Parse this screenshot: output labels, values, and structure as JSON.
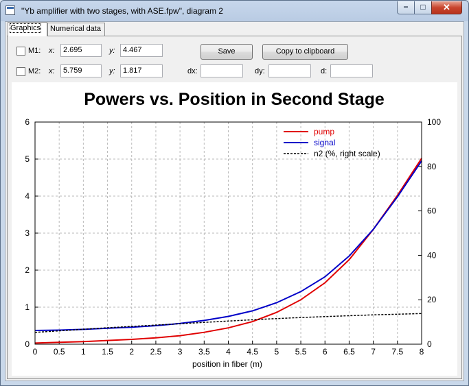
{
  "window": {
    "title": "\"Yb amplifier with two stages, with ASE.fpw\", diagram 2",
    "minimize_glyph": "−",
    "maximize_glyph": "□",
    "close_glyph": "✕"
  },
  "tabs": [
    {
      "label": "Graphics",
      "active": true
    },
    {
      "label": "Numerical data",
      "active": false
    }
  ],
  "markers": {
    "m1": {
      "label": "M1:",
      "x_label": "x:",
      "x": "2.695",
      "y_label": "y:",
      "y": "4.467",
      "checked": false
    },
    "m2": {
      "label": "M2:",
      "x_label": "x:",
      "x": "5.759",
      "y_label": "y:",
      "y": "1.817",
      "checked": false
    },
    "dx_label": "dx:",
    "dx": "",
    "dy_label": "dy:",
    "dy": "",
    "d_label": "d:",
    "d": ""
  },
  "buttons": {
    "save": "Save",
    "copy": "Copy to clipboard"
  },
  "chart_data": {
    "type": "line",
    "title": "Powers vs. Position in Second Stage",
    "xlabel": "position in fiber (m)",
    "ylabel": "",
    "xlim": [
      0,
      8
    ],
    "ylim": [
      0,
      6
    ],
    "y2lim": [
      0,
      100
    ],
    "x_ticks": [
      "0",
      "0.5",
      "1",
      "1.5",
      "2",
      "2.5",
      "3",
      "3.5",
      "4",
      "4.5",
      "5",
      "5.5",
      "6",
      "6.5",
      "7",
      "7.5",
      "8"
    ],
    "y_ticks": [
      "0",
      "1",
      "2",
      "3",
      "4",
      "5",
      "6"
    ],
    "y2_ticks": [
      "0",
      "20",
      "40",
      "60",
      "80",
      "100"
    ],
    "grid": true,
    "legend_position": "top-right",
    "series": [
      {
        "name": "pump",
        "color": "#e00000",
        "axis": "left",
        "style": "solid",
        "x": [
          0,
          0.5,
          1,
          1.5,
          2,
          2.5,
          3,
          3.5,
          4,
          4.5,
          5,
          5.5,
          6,
          6.5,
          7,
          7.5,
          8
        ],
        "y": [
          0.03,
          0.05,
          0.07,
          0.1,
          0.13,
          0.17,
          0.23,
          0.32,
          0.44,
          0.61,
          0.86,
          1.2,
          1.66,
          2.28,
          3.1,
          4.02,
          5.02
        ]
      },
      {
        "name": "signal",
        "color": "#0000c8",
        "axis": "left",
        "style": "solid",
        "x": [
          0,
          0.5,
          1,
          1.5,
          2,
          2.5,
          3,
          3.5,
          4,
          4.5,
          5,
          5.5,
          6,
          6.5,
          7,
          7.5,
          8
        ],
        "y": [
          0.37,
          0.38,
          0.4,
          0.43,
          0.46,
          0.5,
          0.56,
          0.64,
          0.75,
          0.9,
          1.12,
          1.42,
          1.82,
          2.38,
          3.1,
          3.98,
          4.95
        ]
      },
      {
        "name": "n2 (%, right scale)",
        "color": "#000000",
        "axis": "right",
        "style": "dashed",
        "x": [
          0,
          0.5,
          1,
          1.5,
          2,
          2.5,
          3,
          3.5,
          4,
          4.5,
          5,
          5.5,
          6,
          6.5,
          7,
          7.5,
          8
        ],
        "y": [
          5.3,
          6.0,
          6.7,
          7.4,
          8.0,
          8.6,
          9.2,
          9.8,
          10.4,
          11.0,
          11.5,
          12.0,
          12.4,
          12.8,
          13.2,
          13.5,
          13.8
        ]
      }
    ]
  }
}
